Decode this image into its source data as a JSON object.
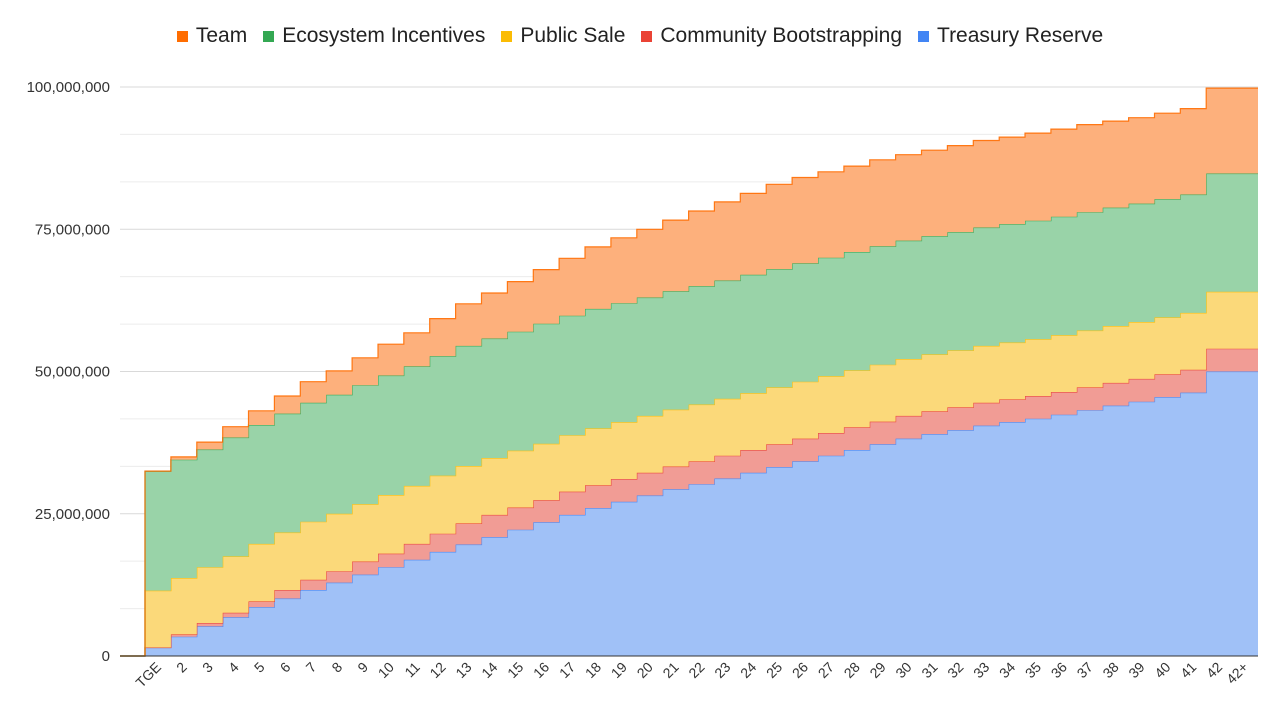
{
  "chart_data": {
    "type": "area",
    "stacked": true,
    "step": true,
    "categories": [
      "TGE",
      "2",
      "3",
      "4",
      "5",
      "6",
      "7",
      "8",
      "9",
      "10",
      "11",
      "12",
      "13",
      "14",
      "15",
      "16",
      "17",
      "18",
      "19",
      "20",
      "21",
      "22",
      "23",
      "24",
      "25",
      "26",
      "27",
      "28",
      "29",
      "30",
      "31",
      "32",
      "33",
      "34",
      "35",
      "36",
      "37",
      "38",
      "39",
      "40",
      "41",
      "42",
      "42+"
    ],
    "ylim": [
      0,
      100000000
    ],
    "yticks": [
      0,
      25000000,
      50000000,
      75000000,
      100000000
    ],
    "ytick_labels": [
      "0",
      "25,000,000",
      "50,000,000",
      "75,000,000",
      "100,000,000"
    ],
    "grid": true,
    "legend_position": "top",
    "series": [
      {
        "name": "Treasury Reserve",
        "color": "#4285f4",
        "fill": "#a0c1f7",
        "values": [
          1500000,
          3400000,
          5200000,
          6800000,
          8600000,
          10100000,
          11600000,
          12900000,
          14300000,
          15600000,
          16900000,
          18300000,
          19600000,
          20900000,
          22200000,
          23500000,
          24800000,
          26000000,
          27100000,
          28200000,
          29300000,
          30200000,
          31200000,
          32200000,
          33200000,
          34200000,
          35200000,
          36200000,
          37200000,
          38200000,
          39000000,
          39700000,
          40500000,
          41100000,
          41700000,
          42400000,
          43200000,
          44000000,
          44700000,
          45500000,
          46300000,
          50000000,
          50000000
        ]
      },
      {
        "name": "Community Bootstrapping",
        "color": "#ea4335",
        "fill": "#f19c95",
        "values": [
          0,
          400000,
          600000,
          800000,
          1000000,
          1500000,
          1800000,
          2000000,
          2300000,
          2400000,
          2800000,
          3200000,
          3700000,
          3900000,
          3900000,
          3900000,
          4100000,
          4000000,
          4000000,
          4000000,
          4000000,
          4000000,
          4000000,
          4000000,
          4000000,
          4000000,
          4000000,
          4000000,
          4000000,
          4000000,
          4000000,
          4000000,
          4000000,
          4000000,
          4000000,
          4000000,
          4000000,
          4000000,
          4000000,
          4000000,
          4000000,
          4000000,
          4000000
        ]
      },
      {
        "name": "Public Sale",
        "color": "#fbbc04",
        "fill": "#fbd97a",
        "values": [
          10000000,
          9900000,
          9800000,
          9900000,
          10100000,
          10100000,
          10200000,
          10100000,
          10100000,
          10300000,
          10200000,
          10200000,
          10100000,
          10000000,
          10000000,
          9900000,
          9900000,
          10000000,
          10000000,
          10000000,
          10000000,
          10000000,
          10000000,
          10000000,
          10000000,
          10000000,
          10000000,
          10000000,
          10000000,
          10000000,
          10000000,
          10000000,
          10000000,
          10000000,
          10000000,
          10000000,
          10000000,
          10000000,
          10000000,
          10000000,
          10000000,
          10000000,
          10000000
        ]
      },
      {
        "name": "Ecosystem Incentives",
        "color": "#34a853",
        "fill": "#99d3a8",
        "values": [
          21000000,
          20800000,
          20700000,
          20900000,
          20900000,
          20900000,
          20900000,
          20900000,
          20900000,
          21000000,
          21000000,
          21000000,
          21100000,
          21000000,
          20900000,
          21100000,
          21000000,
          21000000,
          20900000,
          20800000,
          20800000,
          20800000,
          20800000,
          20800000,
          20800000,
          20800000,
          20800000,
          20800000,
          20800000,
          20800000,
          20800000,
          20800000,
          20800000,
          20800000,
          20800000,
          20800000,
          20800000,
          20800000,
          20800000,
          20800000,
          20800000,
          20800000,
          20800000
        ]
      },
      {
        "name": "Team",
        "color": "#ff6d01",
        "fill": "#fdb07c",
        "values": [
          0,
          500000,
          1300000,
          1900000,
          2500000,
          3100000,
          3700000,
          4200000,
          4800000,
          5500000,
          5900000,
          6600000,
          7400000,
          8000000,
          8800000,
          9500000,
          10100000,
          10900000,
          11500000,
          12000000,
          12500000,
          13200000,
          13800000,
          14300000,
          14900000,
          15100000,
          15100000,
          15100000,
          15200000,
          15100000,
          15100000,
          15200000,
          15300000,
          15300000,
          15400000,
          15400000,
          15400000,
          15200000,
          15100000,
          15100000,
          15100000,
          15000000,
          15000000
        ]
      }
    ]
  },
  "legend": [
    {
      "label": "Team",
      "color": "#ff6d01"
    },
    {
      "label": "Ecosystem Incentives",
      "color": "#34a853"
    },
    {
      "label": "Public Sale",
      "color": "#fbbc04"
    },
    {
      "label": "Community Bootstrapping",
      "color": "#ea4335"
    },
    {
      "label": "Treasury Reserve",
      "color": "#4285f4"
    }
  ]
}
